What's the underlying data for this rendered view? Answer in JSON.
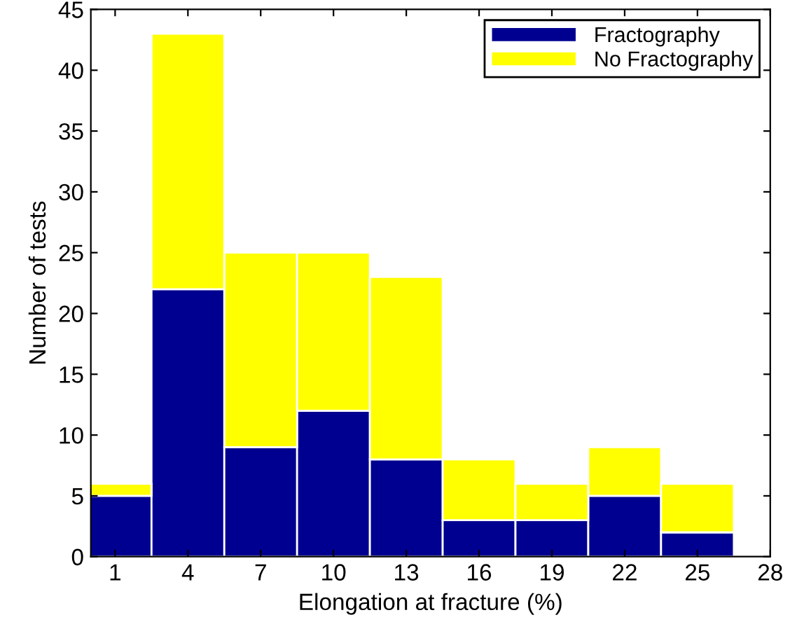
{
  "chart_data": {
    "type": "bar",
    "stacked": true,
    "x": [
      1,
      4,
      7,
      10,
      13,
      16,
      19,
      22,
      25
    ],
    "series": [
      {
        "name": "Fractography",
        "color": "#000090",
        "values": [
          5,
          22,
          9,
          12,
          8,
          3,
          3,
          5,
          2
        ]
      },
      {
        "name": "No Fractography",
        "color": "#ffff00",
        "values": [
          1,
          21,
          16,
          13,
          15,
          5,
          3,
          4,
          4
        ]
      }
    ],
    "xlabel": "Elongation at fracture (%)",
    "ylabel": "Number of tests",
    "xlim": [
      0,
      28
    ],
    "xticks": [
      1,
      4,
      7,
      10,
      13,
      16,
      19,
      22,
      25,
      28
    ],
    "ylim": [
      0,
      45
    ],
    "yticks": [
      0,
      5,
      10,
      15,
      20,
      25,
      30,
      35,
      40,
      45
    ],
    "legend": "top right",
    "grid": false
  }
}
